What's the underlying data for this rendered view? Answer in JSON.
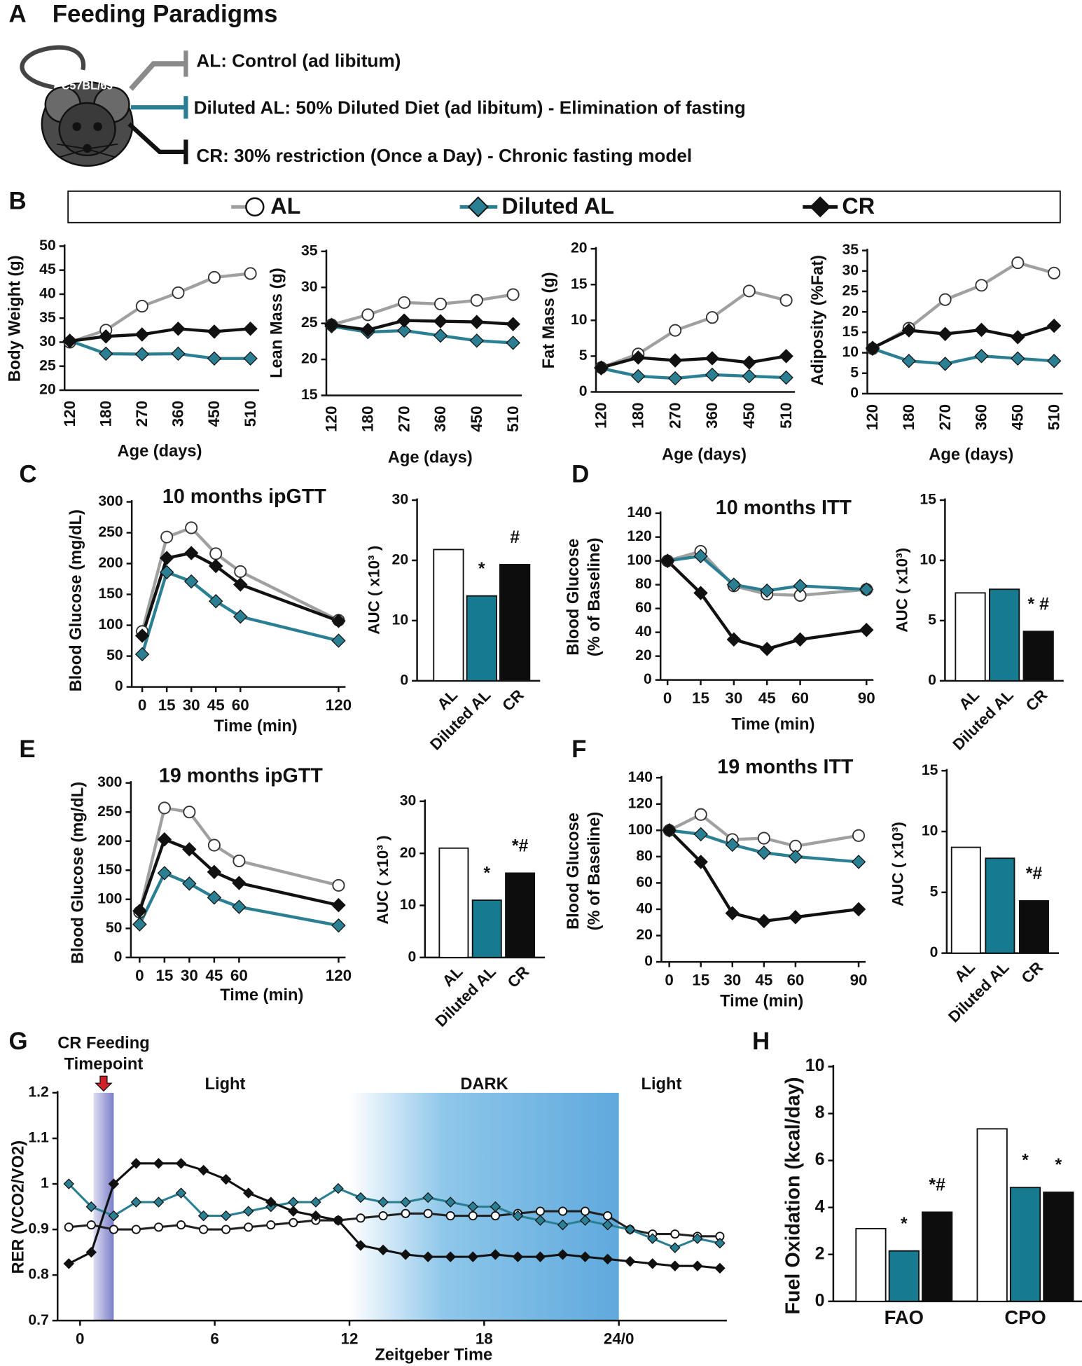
{
  "panel_labels": [
    "A",
    "B",
    "C",
    "D",
    "E",
    "F",
    "G",
    "H"
  ],
  "panel_a": {
    "title": "Feeding Paradigms",
    "strain": "C57BL/6J",
    "paradigms": [
      "AL: Control (ad libitum)",
      "Diluted AL: 50% Diluted Diet (ad libitum) - Elimination of fasting",
      "CR: 30% restriction (Once a Day) - Chronic fasting model"
    ]
  },
  "chart_data": [
    {
      "type": "line",
      "y_label": "Body Weight (g)",
      "x_label": "Age (days)",
      "categories": [
        "120",
        "180",
        "270",
        "360",
        "450",
        "510"
      ],
      "ylim": [
        20,
        50
      ],
      "yticks": [
        20,
        25,
        30,
        35,
        40,
        45,
        50
      ],
      "series": [
        {
          "name": "AL",
          "color": "#a0a0a0",
          "marker": "circle",
          "marker_fill": "#ffffff",
          "values": [
            30,
            32.5,
            37.5,
            40.3,
            43.5,
            44.3
          ]
        },
        {
          "name": "Diluted AL",
          "color": "#2b7f92",
          "marker": "diamond",
          "marker_fill": "#2b7f92",
          "values": [
            30.3,
            27.6,
            27.5,
            27.6,
            26.6,
            26.6
          ]
        },
        {
          "name": "CR",
          "color": "#111111",
          "marker": "diamond",
          "marker_fill": "#111111",
          "values": [
            30.2,
            31.2,
            31.6,
            32.8,
            32.2,
            32.8
          ]
        }
      ]
    },
    {
      "type": "line",
      "y_label": "Lean Mass (g)",
      "x_label": "Age (days)",
      "categories": [
        "120",
        "180",
        "270",
        "360",
        "450",
        "510"
      ],
      "ylim": [
        15,
        35
      ],
      "yticks": [
        15,
        20,
        25,
        30,
        35
      ],
      "series": [
        {
          "name": "AL",
          "color": "#a0a0a0",
          "marker": "circle",
          "marker_fill": "#ffffff",
          "values": [
            24.8,
            26.2,
            27.9,
            27.7,
            28.2,
            29.0
          ]
        },
        {
          "name": "Diluted AL",
          "color": "#2b7f92",
          "marker": "diamond",
          "marker_fill": "#2b7f92",
          "values": [
            24.6,
            23.8,
            24.0,
            23.3,
            22.6,
            22.3
          ]
        },
        {
          "name": "CR",
          "color": "#111111",
          "marker": "diamond",
          "marker_fill": "#111111",
          "values": [
            24.8,
            24.1,
            25.4,
            25.3,
            25.2,
            24.9
          ]
        }
      ]
    },
    {
      "type": "line",
      "y_label": "Fat Mass (g)",
      "x_label": "Age (days)",
      "categories": [
        "120",
        "180",
        "270",
        "360",
        "450",
        "510"
      ],
      "ylim": [
        0,
        20
      ],
      "yticks": [
        0,
        5,
        10,
        15,
        20
      ],
      "series": [
        {
          "name": "AL",
          "color": "#a0a0a0",
          "marker": "circle",
          "marker_fill": "#ffffff",
          "values": [
            3.4,
            5.3,
            8.6,
            10.4,
            14.1,
            12.8
          ]
        },
        {
          "name": "Diluted AL",
          "color": "#2b7f92",
          "marker": "diamond",
          "marker_fill": "#2b7f92",
          "values": [
            3.3,
            2.2,
            1.9,
            2.4,
            2.2,
            2.0
          ]
        },
        {
          "name": "CR",
          "color": "#111111",
          "marker": "diamond",
          "marker_fill": "#111111",
          "values": [
            3.4,
            4.8,
            4.4,
            4.7,
            4.1,
            5.0
          ]
        }
      ]
    },
    {
      "type": "line",
      "y_label": "Adiposity (%Fat)",
      "x_label": "Age (days)",
      "categories": [
        "120",
        "180",
        "270",
        "360",
        "450",
        "510"
      ],
      "ylim": [
        0,
        35
      ],
      "yticks": [
        0,
        5,
        10,
        15,
        20,
        25,
        30,
        35
      ],
      "series": [
        {
          "name": "AL",
          "color": "#a0a0a0",
          "marker": "circle",
          "marker_fill": "#ffffff",
          "values": [
            11,
            16,
            23,
            26.5,
            32,
            29.5
          ]
        },
        {
          "name": "Diluted AL",
          "color": "#2b7f92",
          "marker": "diamond",
          "marker_fill": "#2b7f92",
          "values": [
            11,
            8,
            7.3,
            9.2,
            8.6,
            8.0
          ]
        },
        {
          "name": "CR",
          "color": "#111111",
          "marker": "diamond",
          "marker_fill": "#111111",
          "values": [
            11.2,
            15.5,
            14.6,
            15.6,
            13.8,
            16.6
          ]
        }
      ]
    },
    {
      "type": "line",
      "title": "10 months ipGTT",
      "y_label": "Blood Glucose (mg/dL)",
      "x_label": "Time (min)",
      "x": [
        0,
        15,
        30,
        45,
        60,
        120
      ],
      "xlim": [
        0,
        120
      ],
      "xticks": [
        0,
        15,
        30,
        45,
        60,
        120
      ],
      "ylim": [
        0,
        300
      ],
      "yticks": [
        0,
        50,
        100,
        150,
        200,
        250,
        300
      ],
      "series": [
        {
          "name": "AL",
          "color": "#a0a0a0",
          "marker": "circle",
          "marker_fill": "#ffffff",
          "values": [
            90,
            243,
            258,
            216,
            187,
            108
          ]
        },
        {
          "name": "Diluted AL",
          "color": "#2b7f92",
          "marker": "diamond",
          "marker_fill": "#2b7f92",
          "values": [
            53,
            186,
            171,
            139,
            114,
            75
          ]
        },
        {
          "name": "CR",
          "color": "#111111",
          "marker": "diamond",
          "marker_fill": "#111111",
          "values": [
            83,
            209,
            217,
            196,
            166,
            107
          ]
        }
      ]
    },
    {
      "type": "bar",
      "y_label": "AUC ( x10³ )",
      "categories": [
        "AL",
        "Diluted AL",
        "CR"
      ],
      "values": [
        21.8,
        14.1,
        19.3
      ],
      "colors": [
        "#ffffff",
        "#167a90",
        "#0d0d0d"
      ],
      "annotations": [
        null,
        "*",
        "#"
      ],
      "ylim": [
        0,
        30
      ],
      "yticks": [
        0,
        10,
        20,
        30
      ]
    },
    {
      "type": "line",
      "title": "10 months ITT",
      "y_label": [
        "Blood Glucose",
        "(% of Baseline)"
      ],
      "x_label": "Time (min)",
      "x": [
        0,
        15,
        30,
        45,
        60,
        90
      ],
      "xlim": [
        0,
        90
      ],
      "xticks": [
        0,
        15,
        30,
        45,
        60,
        90
      ],
      "ylim": [
        0,
        140
      ],
      "yticks": [
        0,
        20,
        40,
        60,
        80,
        100,
        120,
        140
      ],
      "series": [
        {
          "name": "AL",
          "color": "#a0a0a0",
          "marker": "circle",
          "marker_fill": "#ffffff",
          "values": [
            100,
            108,
            79,
            72,
            71,
            76
          ]
        },
        {
          "name": "Diluted AL",
          "color": "#2b7f92",
          "marker": "diamond",
          "marker_fill": "#2b7f92",
          "values": [
            100,
            104,
            80,
            75,
            79,
            76
          ]
        },
        {
          "name": "CR",
          "color": "#111111",
          "marker": "diamond",
          "marker_fill": "#111111",
          "values": [
            100,
            73,
            34,
            26,
            34,
            42
          ]
        }
      ]
    },
    {
      "type": "bar",
      "y_label": "AUC ( x10³)",
      "categories": [
        "AL",
        "Diluted AL",
        "CR"
      ],
      "values": [
        7.3,
        7.6,
        4.1
      ],
      "colors": [
        "#ffffff",
        "#167a90",
        "#0d0d0d"
      ],
      "annotations": [
        null,
        null,
        "* #"
      ],
      "ylim": [
        0,
        15
      ],
      "yticks": [
        0,
        5,
        10,
        15
      ]
    },
    {
      "type": "line",
      "title": "19 months ipGTT",
      "y_label": "Blood Glucose (mg/dL)",
      "x_label": "Time (min)",
      "x": [
        0,
        15,
        30,
        45,
        60,
        120
      ],
      "xlim": [
        0,
        120
      ],
      "xticks": [
        0,
        15,
        30,
        45,
        60,
        120
      ],
      "ylim": [
        0,
        300
      ],
      "yticks": [
        0,
        50,
        100,
        150,
        200,
        250,
        300
      ],
      "series": [
        {
          "name": "AL",
          "color": "#a0a0a0",
          "marker": "circle",
          "marker_fill": "#ffffff",
          "values": [
            78,
            257,
            250,
            193,
            166,
            124
          ]
        },
        {
          "name": "Diluted AL",
          "color": "#2b7f92",
          "marker": "diamond",
          "marker_fill": "#2b7f92",
          "values": [
            57,
            145,
            127,
            103,
            87,
            55
          ]
        },
        {
          "name": "CR",
          "color": "#111111",
          "marker": "diamond",
          "marker_fill": "#111111",
          "values": [
            80,
            203,
            186,
            147,
            128,
            90
          ]
        }
      ]
    },
    {
      "type": "bar",
      "y_label": "AUC ( x10³ )",
      "categories": [
        "AL",
        "Diluted AL",
        "CR"
      ],
      "values": [
        21.0,
        11.0,
        16.2
      ],
      "colors": [
        "#ffffff",
        "#167a90",
        "#0d0d0d"
      ],
      "annotations": [
        null,
        "*",
        "*#"
      ],
      "ylim": [
        0,
        30
      ],
      "yticks": [
        0,
        10,
        20,
        30
      ]
    },
    {
      "type": "line",
      "title": "19 months ITT",
      "y_label": [
        "Blood Glucose",
        "(% of Baseline)"
      ],
      "x_label": "Time (min)",
      "x": [
        0,
        15,
        30,
        45,
        60,
        90
      ],
      "xlim": [
        0,
        90
      ],
      "xticks": [
        0,
        15,
        30,
        45,
        60,
        90
      ],
      "ylim": [
        0,
        140
      ],
      "yticks": [
        0,
        20,
        40,
        60,
        80,
        100,
        120,
        140
      ],
      "series": [
        {
          "name": "AL",
          "color": "#a0a0a0",
          "marker": "circle",
          "marker_fill": "#ffffff",
          "values": [
            100,
            112,
            93,
            94,
            88,
            96
          ]
        },
        {
          "name": "Diluted AL",
          "color": "#2b7f92",
          "marker": "diamond",
          "marker_fill": "#2b7f92",
          "values": [
            100,
            97,
            89,
            83,
            80,
            76
          ]
        },
        {
          "name": "CR",
          "color": "#111111",
          "marker": "diamond",
          "marker_fill": "#111111",
          "values": [
            100,
            76,
            37,
            31,
            34,
            40
          ]
        }
      ]
    },
    {
      "type": "bar",
      "y_label": "AUC ( x10³)",
      "categories": [
        "AL",
        "Diluted AL",
        "CR"
      ],
      "values": [
        8.7,
        7.8,
        4.3
      ],
      "colors": [
        "#ffffff",
        "#167a90",
        "#0d0d0d"
      ],
      "annotations": [
        null,
        null,
        "*#"
      ],
      "ylim": [
        0,
        15
      ],
      "yticks": [
        0,
        5,
        10,
        15
      ]
    },
    {
      "type": "line",
      "y_label": "RER (VCO2/VO2)",
      "x_label": "Zeitgeber Time",
      "feeding_label": [
        "CR Feeding",
        "Timepoint"
      ],
      "phase_labels": [
        "Light",
        "DARK",
        "Light"
      ],
      "feeding_band": [
        0.6,
        1.5
      ],
      "dark_band": [
        12,
        24
      ],
      "x": [
        -0.5,
        0.5,
        1.5,
        2.5,
        3.5,
        4.5,
        5.5,
        6.5,
        7.5,
        8.5,
        9.5,
        10.5,
        11.5,
        12.5,
        13.5,
        14.5,
        15.5,
        16.5,
        17.5,
        18.5,
        19.5,
        20.5,
        21.5,
        22.5,
        23.5,
        24.5,
        25.5,
        26.5,
        27.5,
        28.5
      ],
      "xlim": [
        -1,
        28.5
      ],
      "xticks": [
        0,
        6,
        12,
        18,
        {
          "value": 24,
          "label": "24/0"
        }
      ],
      "ylim": [
        0.7,
        1.2
      ],
      "yticks": [
        0.7,
        0.8,
        0.9,
        1,
        1.1,
        1.2
      ],
      "series": [
        {
          "name": "AL",
          "color": "#222222",
          "marker": "circle",
          "marker_fill": "#ffffff",
          "values": [
            0.905,
            0.91,
            0.9,
            0.9,
            0.905,
            0.91,
            0.9,
            0.9,
            0.905,
            0.91,
            0.915,
            0.92,
            0.92,
            0.925,
            0.93,
            0.935,
            0.935,
            0.93,
            0.93,
            0.93,
            0.935,
            0.94,
            0.94,
            0.94,
            0.93,
            0.9,
            0.89,
            0.89,
            0.885,
            0.885
          ]
        },
        {
          "name": "Diluted AL",
          "color": "#2b7f92",
          "marker": "diamond",
          "marker_fill": "#2b7f92",
          "values": [
            1.0,
            0.95,
            0.93,
            0.96,
            0.96,
            0.98,
            0.93,
            0.93,
            0.94,
            0.95,
            0.96,
            0.96,
            0.99,
            0.97,
            0.96,
            0.96,
            0.97,
            0.96,
            0.95,
            0.95,
            0.93,
            0.92,
            0.91,
            0.92,
            0.91,
            0.9,
            0.88,
            0.86,
            0.88,
            0.87
          ]
        },
        {
          "name": "CR",
          "color": "#111111",
          "marker": "diamond",
          "marker_fill": "#111111",
          "values": [
            0.825,
            0.85,
            1.0,
            1.045,
            1.045,
            1.045,
            1.03,
            1.01,
            0.98,
            0.96,
            0.94,
            0.93,
            0.92,
            0.865,
            0.855,
            0.845,
            0.84,
            0.84,
            0.84,
            0.845,
            0.84,
            0.84,
            0.845,
            0.84,
            0.835,
            0.83,
            0.825,
            0.82,
            0.82,
            0.815
          ]
        }
      ]
    },
    {
      "type": "bar",
      "y_label": "Fuel Oxidation  (kcal/day)",
      "categories": [
        "FAO",
        "CPO"
      ],
      "ylim": [
        0,
        10
      ],
      "yticks": [
        0,
        2,
        4,
        6,
        8,
        10
      ],
      "series": [
        {
          "name": "AL",
          "color": "#ffffff",
          "values": [
            3.1,
            7.35
          ],
          "annotations": [
            null,
            null
          ]
        },
        {
          "name": "Diluted AL",
          "color": "#167a90",
          "values": [
            2.15,
            4.85
          ],
          "annotations": [
            "*",
            "*"
          ]
        },
        {
          "name": "CR",
          "color": "#0d0d0d",
          "values": [
            3.8,
            4.65
          ],
          "annotations": [
            "*#",
            "*"
          ]
        }
      ]
    }
  ]
}
